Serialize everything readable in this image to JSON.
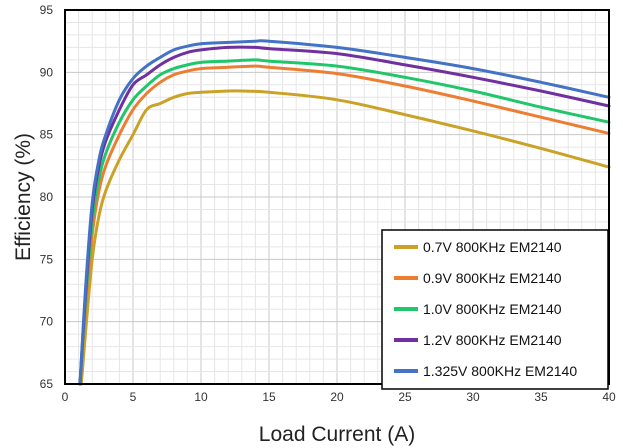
{
  "chart_data": {
    "type": "line",
    "title": "",
    "xlabel": "Load Current (A)",
    "ylabel": "Efficiency (%)",
    "xlim": [
      0,
      40
    ],
    "ylim": [
      65,
      95
    ],
    "xticks": [
      "0",
      "5",
      "10",
      "15",
      "20",
      "25",
      "30",
      "35",
      "40"
    ],
    "yticks": [
      "65",
      "70",
      "75",
      "80",
      "85",
      "90",
      "95"
    ],
    "grid": true,
    "legend_position": "bottom-right",
    "series": [
      {
        "name": "0.7V 800KHz EM2140",
        "color": "#c9a227",
        "x": [
          1.2,
          1.5,
          2,
          2.5,
          3,
          4,
          5,
          6,
          7,
          8,
          9,
          10,
          12,
          13,
          15,
          20,
          25,
          30,
          35,
          40
        ],
        "y": [
          65,
          69,
          75,
          78.5,
          80.5,
          83,
          85,
          87,
          87.5,
          88,
          88.3,
          88.4,
          88.5,
          88.5,
          88.4,
          87.8,
          86.6,
          85.3,
          83.9,
          82.4
        ]
      },
      {
        "name": "0.9V 800KHz EM2140",
        "color": "#ed7d31",
        "x": [
          1.1,
          1.5,
          2,
          2.5,
          3,
          4,
          5,
          6,
          7,
          8,
          9,
          10,
          12,
          14,
          15,
          20,
          25,
          30,
          35,
          40
        ],
        "y": [
          65,
          71,
          77,
          80.5,
          82.5,
          85,
          87,
          88.3,
          89.2,
          89.8,
          90.1,
          90.3,
          90.4,
          90.5,
          90.4,
          89.9,
          88.9,
          87.7,
          86.4,
          85.1
        ]
      },
      {
        "name": "1.0V 800KHz EM2140",
        "color": "#1fc66a",
        "x": [
          1.1,
          1.5,
          2,
          2.5,
          3,
          4,
          5,
          6,
          7,
          8,
          9,
          10,
          12,
          14,
          15,
          20,
          25,
          30,
          35,
          40
        ],
        "y": [
          65,
          71.5,
          78,
          81.5,
          83.5,
          86,
          87.8,
          88.9,
          89.8,
          90.3,
          90.6,
          90.8,
          90.9,
          91,
          90.9,
          90.5,
          89.6,
          88.5,
          87.2,
          86
        ]
      },
      {
        "name": "1.2V 800KHz EM2140",
        "color": "#7030a0",
        "x": [
          1.1,
          1.5,
          2,
          2.5,
          3,
          4,
          5,
          6,
          7,
          8,
          9,
          10,
          12,
          14,
          15,
          20,
          25,
          30,
          35,
          40
        ],
        "y": [
          65,
          72,
          79,
          82.5,
          84.5,
          87,
          89,
          89.8,
          90.6,
          91.2,
          91.6,
          91.8,
          92,
          92,
          91.9,
          91.5,
          90.6,
          89.6,
          88.5,
          87.3
        ]
      },
      {
        "name": "1.325V 800KHz EM2140",
        "color": "#4472c4",
        "x": [
          1.1,
          1.5,
          2,
          2.5,
          3,
          4,
          5,
          6,
          7,
          8,
          9,
          10,
          12,
          14,
          15,
          20,
          25,
          30,
          35,
          40
        ],
        "y": [
          65,
          72.5,
          79.5,
          83,
          85,
          87.8,
          89.5,
          90.5,
          91.2,
          91.8,
          92.1,
          92.3,
          92.4,
          92.5,
          92.5,
          92,
          91.2,
          90.3,
          89.2,
          88
        ]
      }
    ]
  }
}
